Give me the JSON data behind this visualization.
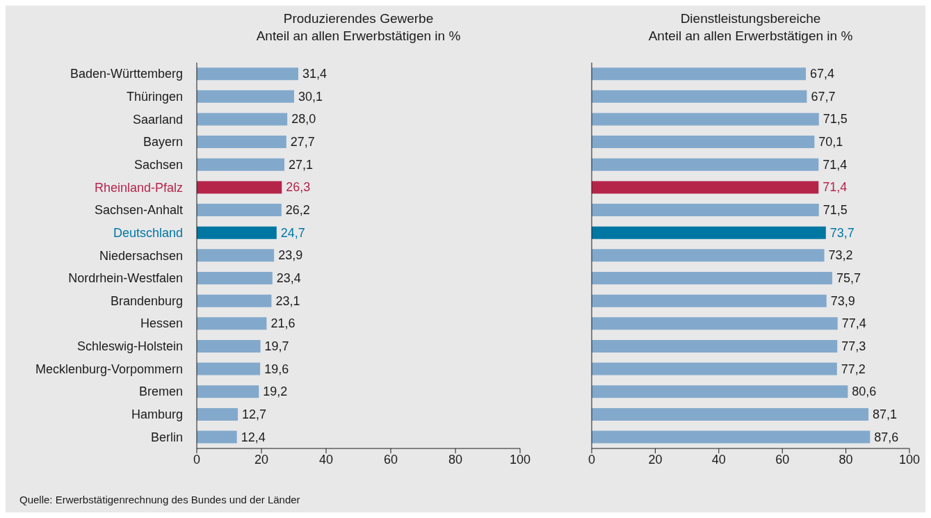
{
  "chart_data": [
    {
      "type": "bar",
      "orientation": "horizontal",
      "title": "Produzierendes Gewerbe",
      "subtitle": "Anteil an allen Erwerbstätigen in %",
      "categories": [
        "Baden-Württemberg",
        "Thüringen",
        "Saarland",
        "Bayern",
        "Sachsen",
        "Rheinland-Pfalz",
        "Sachsen-Anhalt",
        "Deutschland",
        "Niedersachsen",
        "Nordrhein-Westfalen",
        "Brandenburg",
        "Hessen",
        "Schleswig-Holstein",
        "Mecklenburg-Vorpommern",
        "Bremen",
        "Hamburg",
        "Berlin"
      ],
      "values": [
        31.4,
        30.1,
        28.0,
        27.7,
        27.1,
        26.3,
        26.2,
        24.7,
        23.9,
        23.4,
        23.1,
        21.6,
        19.7,
        19.6,
        19.2,
        12.7,
        12.4
      ],
      "value_labels": [
        "31,4",
        "30,1",
        "28,0",
        "27,7",
        "27,1",
        "26,3",
        "26,2",
        "24,7",
        "23,9",
        "23,4",
        "23,1",
        "21,6",
        "19,7",
        "19,6",
        "19,2",
        "12,7",
        "12,4"
      ],
      "colors": [
        "#82a9cb",
        "#82a9cb",
        "#82a9cb",
        "#82a9cb",
        "#82a9cb",
        "#b5254a",
        "#82a9cb",
        "#0077a3",
        "#82a9cb",
        "#82a9cb",
        "#82a9cb",
        "#82a9cb",
        "#82a9cb",
        "#82a9cb",
        "#82a9cb",
        "#82a9cb",
        "#82a9cb"
      ],
      "xlim": [
        0,
        100
      ],
      "xticks": [
        0,
        20,
        40,
        60,
        80,
        100
      ],
      "grid": false,
      "legend": false,
      "annotations": [
        "Quelle: Erwerbstätigenrechnung des Bundes und der Länder"
      ]
    },
    {
      "type": "bar",
      "orientation": "horizontal",
      "title": "Dienstleistungsbereiche",
      "subtitle": "Anteil an allen Erwerbstätigen in %",
      "categories": [
        null,
        null,
        null,
        null,
        null,
        null,
        null,
        null,
        null,
        null,
        null,
        null,
        null,
        null,
        null,
        null,
        null
      ],
      "values": [
        67.4,
        67.7,
        71.5,
        70.1,
        71.4,
        71.4,
        71.5,
        73.7,
        73.2,
        75.7,
        73.9,
        77.4,
        77.3,
        77.2,
        80.6,
        87.1,
        87.6
      ],
      "value_labels": [
        "67,4",
        "67,7",
        "71,5",
        "70,1",
        "71,4",
        "71,4",
        "71,5",
        "73,7",
        "73,2",
        "75,7",
        "73,9",
        "77,4",
        "77,3",
        "77,2",
        "80,6",
        "87,1",
        "87,6"
      ],
      "colors": [
        "#82a9cb",
        "#82a9cb",
        "#82a9cb",
        "#82a9cb",
        "#82a9cb",
        "#b5254a",
        "#82a9cb",
        "#0077a3",
        "#82a9cb",
        "#82a9cb",
        "#82a9cb",
        "#82a9cb",
        "#82a9cb",
        "#82a9cb",
        "#82a9cb",
        "#82a9cb",
        "#82a9cb"
      ],
      "xlim": [
        0,
        100
      ],
      "xticks": [
        0,
        20,
        40,
        60,
        80,
        100
      ],
      "grid": false,
      "legend": false,
      "tick_labels": "x"
    }
  ]
}
